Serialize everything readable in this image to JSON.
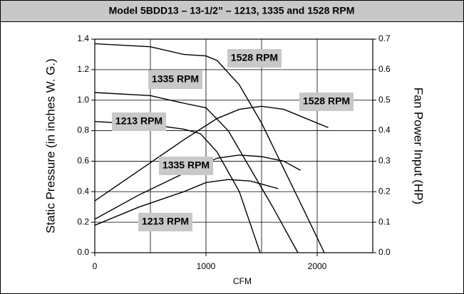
{
  "chart_data": {
    "type": "line",
    "title": "Model 5BDD13 – 13-1/2” – 1213, 1335 and 1528 RPM",
    "x_label": "CFM",
    "y_label": "Static Pressure (in inches W. G.)",
    "y2_label": "Fan Power Input (HP)",
    "xlim": [
      0,
      2500
    ],
    "xticks": [
      0,
      1000,
      2000
    ],
    "xgrid": [
      500,
      1000,
      1500,
      2000
    ],
    "ylim": [
      0,
      1.4
    ],
    "yticks": [
      {
        "value": 0,
        "label": "0.0"
      },
      {
        "value": 0.2,
        "label": "0.2"
      },
      {
        "value": 0.4,
        "label": "0.4"
      },
      {
        "value": 0.6,
        "label": "0.6"
      },
      {
        "value": 0.8,
        "label": "0.8"
      },
      {
        "value": 1,
        "label": "1.0"
      },
      {
        "value": 1.2,
        "label": "1.2"
      },
      {
        "value": 1.4,
        "label": "1.4"
      }
    ],
    "y2lim": [
      0,
      0.7
    ],
    "y2ticks": [
      {
        "value": 0,
        "label": "0.0"
      },
      {
        "value": 0.1,
        "label": "0.1"
      },
      {
        "value": 0.2,
        "label": "0.2"
      },
      {
        "value": 0.3,
        "label": "0.3"
      },
      {
        "value": 0.4,
        "label": "0.4"
      },
      {
        "value": 0.5,
        "label": "0.5"
      },
      {
        "value": 0.6,
        "label": "0.6"
      },
      {
        "value": 0.7,
        "label": "0.7"
      }
    ],
    "grid": true,
    "series": [
      {
        "name": "1528 RPM",
        "color": "#000000",
        "x": [
          0,
          500,
          800,
          1000,
          1100,
          1300,
          1500,
          1700,
          1900,
          2064
        ],
        "values": [
          1.37,
          1.35,
          1.3,
          1.29,
          1.26,
          1.1,
          0.85,
          0.55,
          0.25,
          0
        ]
      },
      {
        "name": "1335 RPM",
        "color": "#000000",
        "x": [
          0,
          500,
          800,
          1000,
          1200,
          1400,
          1600,
          1827
        ],
        "values": [
          1.05,
          1.03,
          0.98,
          0.95,
          0.8,
          0.55,
          0.3,
          0
        ]
      },
      {
        "name": "1213 RPM",
        "color": "#000000",
        "x": [
          0,
          500,
          800,
          950,
          1100,
          1300,
          1487
        ],
        "values": [
          0.86,
          0.84,
          0.81,
          0.78,
          0.66,
          0.4,
          0
        ]
      },
      {
        "name": "1528 RPM",
        "color": "#000000",
        "axis": "y2",
        "x": [
          0,
          400,
          800,
          1100,
          1300,
          1500,
          1700,
          1900,
          2100
        ],
        "values": [
          0.17,
          0.27,
          0.37,
          0.44,
          0.47,
          0.48,
          0.47,
          0.44,
          0.41
        ]
      },
      {
        "name": "1335 RPM",
        "color": "#000000",
        "axis": "y2",
        "x": [
          0,
          400,
          800,
          1100,
          1300,
          1500,
          1700,
          1850
        ],
        "values": [
          0.11,
          0.19,
          0.26,
          0.31,
          0.32,
          0.315,
          0.3,
          0.27
        ]
      },
      {
        "name": "1213 RPM",
        "color": "#000000",
        "axis": "y2",
        "x": [
          0,
          400,
          800,
          1000,
          1200,
          1400,
          1650
        ],
        "values": [
          0.09,
          0.15,
          0.2,
          0.23,
          0.24,
          0.235,
          0.21
        ]
      }
    ],
    "annotations": [
      "1528 RPM",
      "1335 RPM",
      "1528 RPM",
      "1213 RPM",
      "1335 RPM",
      "1213 RPM"
    ]
  }
}
